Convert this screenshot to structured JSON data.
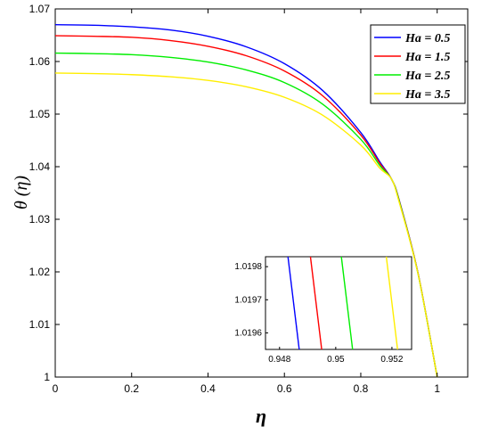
{
  "chart_data": {
    "type": "line",
    "xlabel": "η",
    "ylabel": "θ (η)",
    "xlim": [
      0,
      1.08
    ],
    "ylim": [
      1.0,
      1.07
    ],
    "x_ticks": [
      0,
      0.2,
      0.4,
      0.6,
      0.8,
      1
    ],
    "x_tick_labels": [
      "0",
      "0.2",
      "0.4",
      "0.6",
      "0.8",
      "1"
    ],
    "y_ticks": [
      1.0,
      1.01,
      1.02,
      1.03,
      1.04,
      1.05,
      1.06,
      1.07
    ],
    "y_tick_labels": [
      "1",
      "1.01",
      "1.02",
      "1.03",
      "1.04",
      "1.05",
      "1.06",
      "1.07"
    ],
    "legend_position": "top-right",
    "series": [
      {
        "name": "Ha = 0.5",
        "color": "#0000ff",
        "x": [
          0,
          0.1,
          0.2,
          0.3,
          0.4,
          0.5,
          0.6,
          0.7,
          0.8,
          0.85,
          0.88,
          0.9,
          0.95,
          1.0
        ],
        "y": [
          1.067,
          1.0669,
          1.0666,
          1.066,
          1.0648,
          1.0628,
          1.0596,
          1.0545,
          1.0465,
          1.0409,
          1.0377,
          1.0338,
          1.0197,
          1.0
        ]
      },
      {
        "name": "Ha = 1.5",
        "color": "#ff0000",
        "x": [
          0,
          0.1,
          0.2,
          0.3,
          0.4,
          0.5,
          0.6,
          0.7,
          0.8,
          0.85,
          0.88,
          0.9,
          0.95,
          1.0
        ],
        "y": [
          1.0649,
          1.0648,
          1.0646,
          1.064,
          1.0629,
          1.0611,
          1.0582,
          1.0535,
          1.046,
          1.0406,
          1.0377,
          1.0337,
          1.0197,
          1.0
        ]
      },
      {
        "name": "Ha = 2.5",
        "color": "#00ee00",
        "x": [
          0,
          0.1,
          0.2,
          0.3,
          0.4,
          0.5,
          0.6,
          0.7,
          0.8,
          0.85,
          0.88,
          0.9,
          0.95,
          1.0
        ],
        "y": [
          1.0616,
          1.0615,
          1.0613,
          1.0608,
          1.0599,
          1.0584,
          1.056,
          1.0519,
          1.0452,
          1.0402,
          1.0377,
          1.0336,
          1.0196,
          1.0
        ]
      },
      {
        "name": "Ha = 3.5",
        "color": "#ffee00",
        "x": [
          0,
          0.1,
          0.2,
          0.3,
          0.4,
          0.5,
          0.6,
          0.7,
          0.8,
          0.85,
          0.88,
          0.9,
          0.95,
          1.0
        ],
        "y": [
          1.0578,
          1.0577,
          1.0575,
          1.0571,
          1.0564,
          1.0552,
          1.0532,
          1.0498,
          1.0441,
          1.0397,
          1.0377,
          1.0334,
          1.0196,
          1.0
        ]
      }
    ],
    "inset": {
      "xlim": [
        0.9475,
        0.9527
      ],
      "ylim": [
        1.01955,
        1.01983
      ],
      "x_ticks": [
        0.948,
        0.95,
        0.952
      ],
      "x_tick_labels": [
        "0.948",
        "0.95",
        "0.952"
      ],
      "y_ticks": [
        1.0196,
        1.0197,
        1.0198
      ],
      "y_tick_labels": [
        "1.0196",
        "1.0197",
        "1.0198"
      ],
      "lines": [
        {
          "color": "#0000ff",
          "x": [
            0.9483,
            0.9487
          ],
          "y": [
            1.01983,
            1.01955
          ]
        },
        {
          "color": "#ff0000",
          "x": [
            0.9491,
            0.9495
          ],
          "y": [
            1.01983,
            1.01955
          ]
        },
        {
          "color": "#00ee00",
          "x": [
            0.9502,
            0.9506
          ],
          "y": [
            1.01983,
            1.01955
          ]
        },
        {
          "color": "#ffee00",
          "x": [
            0.9518,
            0.9522
          ],
          "y": [
            1.01983,
            1.01955
          ]
        }
      ]
    }
  }
}
